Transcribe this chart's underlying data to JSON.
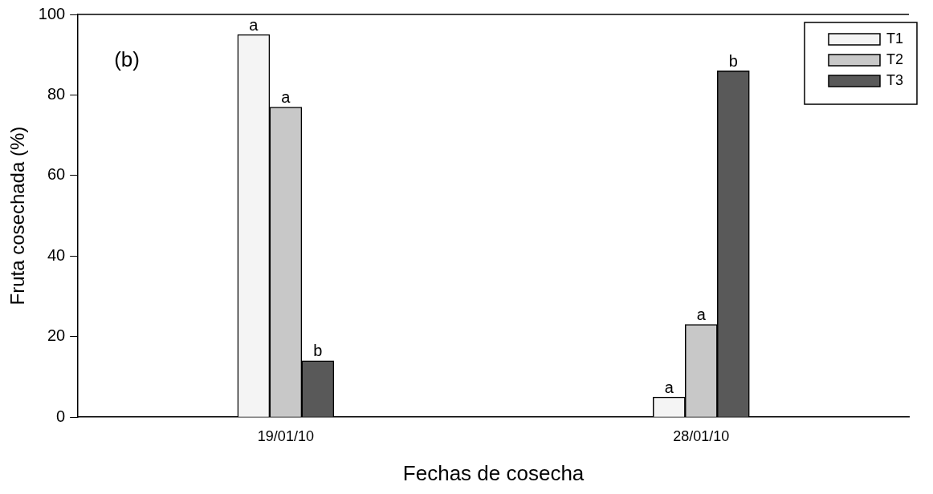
{
  "chart_data": {
    "type": "bar",
    "xlabel": "Fechas de cosecha",
    "ylabel": "Fruta cosechada (%)",
    "categories": [
      "19/01/10",
      "28/01/10"
    ],
    "series": [
      {
        "name": "T1",
        "color": "#f4f4f4",
        "values": [
          95,
          5
        ],
        "value_labels": [
          "a",
          "a"
        ]
      },
      {
        "name": "T2",
        "color": "#c8c8c8",
        "values": [
          77,
          23
        ],
        "value_labels": [
          "a",
          "a"
        ]
      },
      {
        "name": "T3",
        "color": "#595959",
        "values": [
          14,
          86
        ],
        "value_labels": [
          "b",
          "b"
        ]
      }
    ],
    "ylim": [
      0,
      100
    ],
    "yticks": [
      0,
      20,
      40,
      60,
      80,
      100
    ],
    "grid": false,
    "legend": "top right",
    "annotations": [
      "(b)"
    ]
  }
}
